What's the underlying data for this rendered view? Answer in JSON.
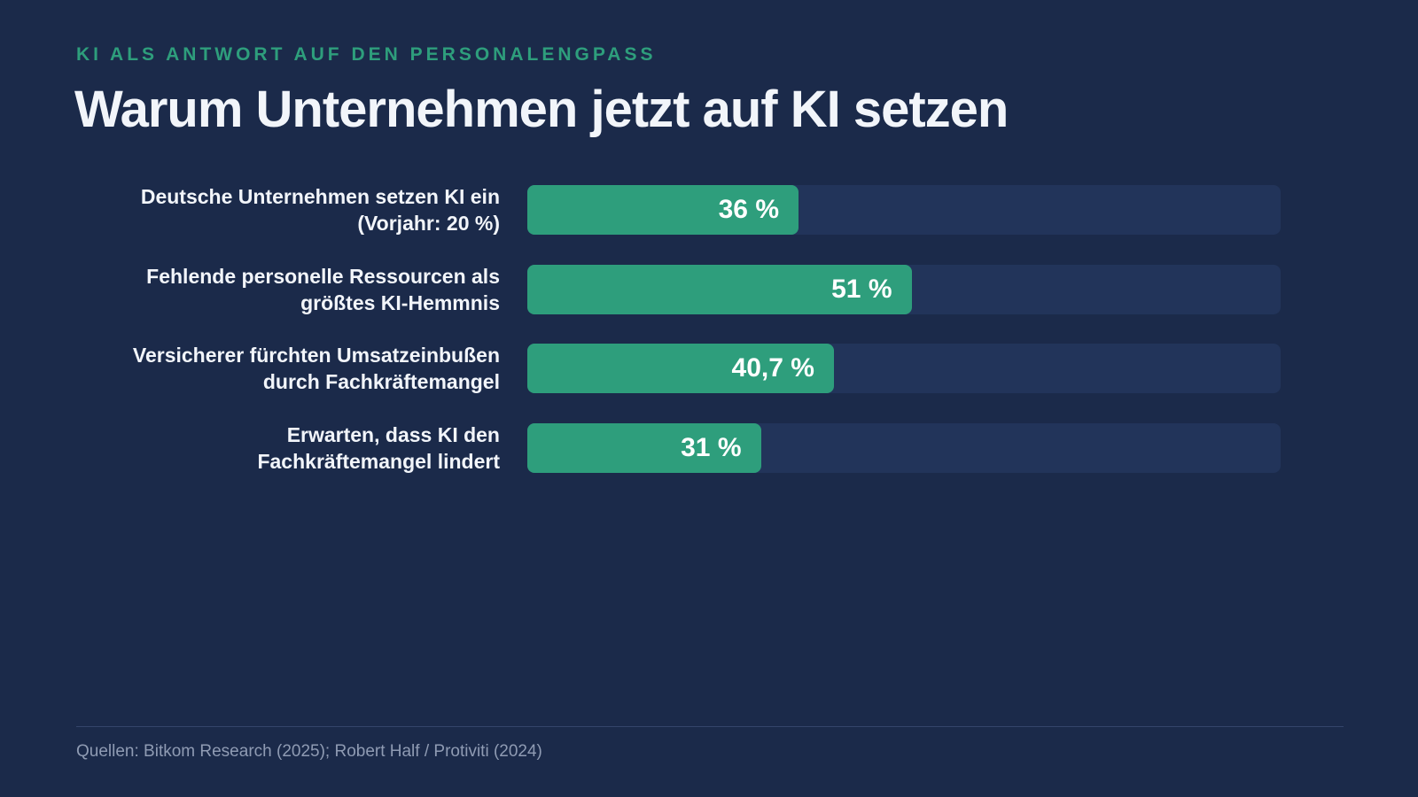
{
  "chart_data": {
    "type": "bar",
    "orientation": "horizontal",
    "subtitle": "KI ALS ANTWORT AUF DEN PERSONALENGPASS",
    "title": "Warum Unternehmen jetzt auf KI setzen",
    "categories": [
      "Deutsche Unternehmen setzen KI ein\n(Vorjahr: 20 %)",
      "Fehlende personelle Ressourcen als\ngrößtes KI-Hemmnis",
      "Versicherer fürchten Umsatzeinbußen\ndurch Fachkräftemangel",
      "Erwarten, dass KI den\nFachkräftemangel lindert"
    ],
    "values": [
      36,
      51,
      40.7,
      31
    ],
    "value_labels": [
      "36 %",
      "51 %",
      "40,7 %",
      "31 %"
    ],
    "color": "#2e9e7c",
    "xlim": [
      0,
      100
    ],
    "source": "Quellen: Bitkom Research (2025); Robert Half / Protiviti (2024)"
  }
}
